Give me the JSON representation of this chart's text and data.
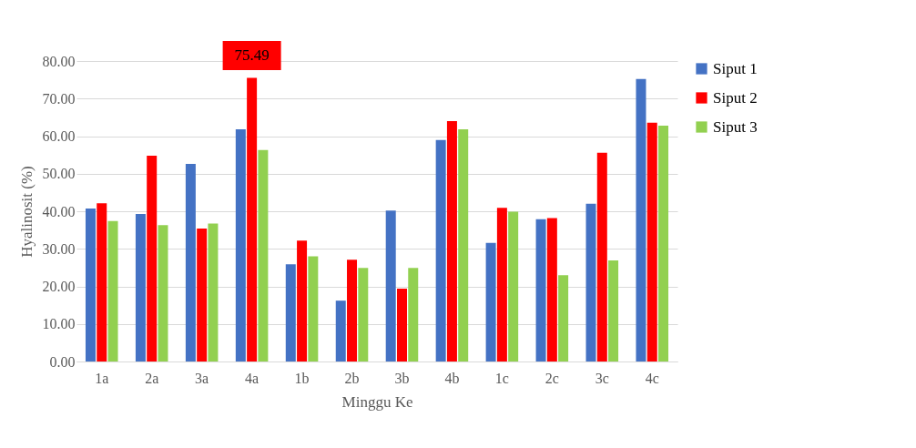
{
  "chart_data": {
    "type": "bar",
    "xlabel": "Minggu Ke",
    "ylabel": "Hyalinosit (%)",
    "categories": [
      "1a",
      "2a",
      "3a",
      "4a",
      "1b",
      "2b",
      "3b",
      "4b",
      "1c",
      "2c",
      "3c",
      "4c"
    ],
    "series": [
      {
        "name": "Siput 1",
        "color": "#4472c4",
        "values": [
          40.7,
          39.3,
          52.6,
          61.8,
          25.9,
          16.2,
          40.2,
          59.0,
          31.6,
          37.9,
          42.0,
          75.2
        ]
      },
      {
        "name": "Siput 2",
        "color": "#ff0000",
        "values": [
          42.1,
          54.8,
          35.4,
          75.49,
          32.2,
          27.1,
          19.4,
          64.0,
          40.9,
          38.2,
          55.6,
          63.6
        ],
        "value_labels": [
          null,
          null,
          null,
          "75.49",
          null,
          null,
          null,
          null,
          null,
          null,
          null,
          null
        ]
      },
      {
        "name": "Siput 3",
        "color": "#92d050",
        "values": [
          37.4,
          36.3,
          36.7,
          56.3,
          28.0,
          24.9,
          24.9,
          61.8,
          39.9,
          23.0,
          26.9,
          62.8
        ]
      }
    ],
    "ylim": [
      0,
      80
    ],
    "yticks": [
      {
        "value": 0,
        "label": "0.00"
      },
      {
        "value": 10,
        "label": "10.00"
      },
      {
        "value": 20,
        "label": "20.00"
      },
      {
        "value": 30,
        "label": "30.00"
      },
      {
        "value": 40,
        "label": "40.00"
      },
      {
        "value": 50,
        "label": "50.00"
      },
      {
        "value": 60,
        "label": "60.00"
      },
      {
        "value": 70,
        "label": "70.00"
      },
      {
        "value": 80,
        "label": "80.00"
      }
    ],
    "grid": "y",
    "legend": "right"
  }
}
